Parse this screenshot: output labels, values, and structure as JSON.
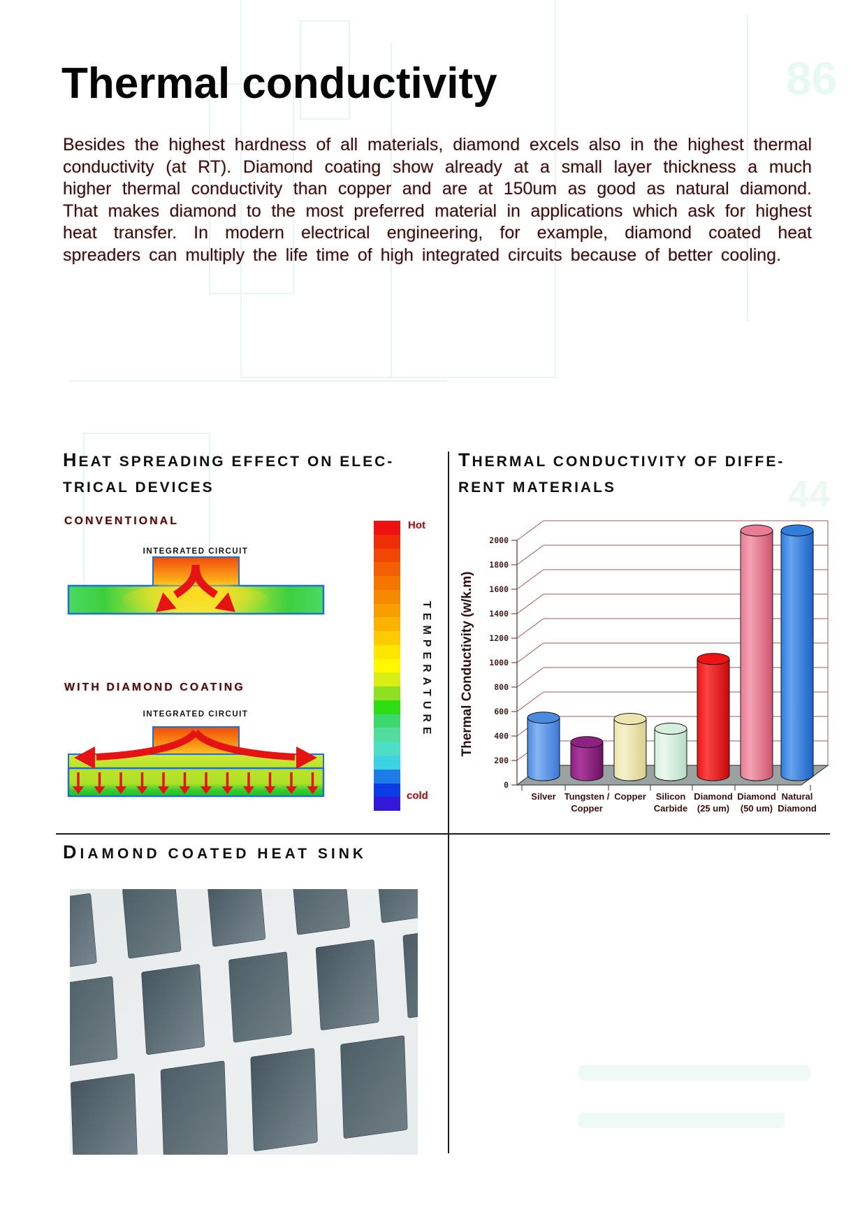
{
  "page": {
    "watermark_top_right": "86",
    "watermark_mid_right": "44"
  },
  "title": "Thermal conductivity",
  "intro": "Besides the highest hardness of all materials, diamond excels also in the highest thermal conductivity (at RT). Diamond coating show already at a small layer thickness a much higher thermal conductivity than copper and are at 150um as good as natural diamond. That makes diamond to the most preferred material in applications which ask for highest heat transfer. In modern electrical engineering, for example, diamond coated heat spreaders can multiply the life time of high integrated circuits because of better cooling.",
  "sections": {
    "left": {
      "heading_line1": "HEAT SPREADING EFFECT ON ELEC-",
      "heading_line2": "TRICAL DEVICES",
      "conventional_label": "CONVENTIONAL",
      "coated_label": "WITH DIAMOND COATING",
      "ic_label": "INTEGRATED CIRCUIT",
      "colorbar": {
        "hot_label": "Hot",
        "cold_label": "cold",
        "axis_label": "TEMPERATURE",
        "segments": [
          "#ee1111",
          "#ef2d07",
          "#f14605",
          "#f35f03",
          "#f57501",
          "#f78900",
          "#f99e00",
          "#fbb300",
          "#fdcc00",
          "#ffe600",
          "#fff800",
          "#d9ee12",
          "#8fdf22",
          "#2edd12",
          "#3ed96e",
          "#52dd9e",
          "#4edec6",
          "#3bd2e2",
          "#1e7ce8",
          "#0c3ce4",
          "#3418da"
        ]
      }
    },
    "right": {
      "heading_line1": "THERMAL CONDUCTIVITY OF DIFFE-",
      "heading_line2": "RENT MATERIALS"
    },
    "photo": {
      "heading": "DIAMOND COATED HEAT SINK"
    }
  },
  "chart_data": {
    "type": "bar",
    "style": "3d-cylinder",
    "title": "Thermal conductivity of different materials",
    "xlabel": "",
    "ylabel": "Thermal Conductivity (w/k.m)",
    "ylim": [
      0,
      2000
    ],
    "ytick_step": 200,
    "grid": true,
    "legend": false,
    "yticks": [
      "0",
      "200",
      "400",
      "600",
      "800",
      "1000",
      "1200",
      "1400",
      "1600",
      "1800",
      "2000"
    ],
    "categories": [
      {
        "line1": "Silver",
        "line2": ""
      },
      {
        "line1": "Tungsten /",
        "line2": "Copper"
      },
      {
        "line1": "Copper",
        "line2": ""
      },
      {
        "line1": "Silicon",
        "line2": "Carbide"
      },
      {
        "line1": "Diamond",
        "line2": "(25 um)"
      },
      {
        "line1": "Diamond",
        "line2": "(50 um)"
      },
      {
        "line1": "Natural",
        "line2": "Diamond"
      }
    ],
    "values": [
      470,
      270,
      460,
      380,
      950,
      2000,
      2000
    ],
    "bar_colors": [
      {
        "name": "silver",
        "main": "#3b78d8",
        "light": "#85b4f2",
        "top": "#4a8ae0"
      },
      {
        "name": "tungsten-copper",
        "main": "#6e1064",
        "light": "#a83a9a",
        "top": "#8d2280"
      },
      {
        "name": "copper",
        "main": "#d8cf8c",
        "light": "#f6f1ca",
        "top": "#ece5b0"
      },
      {
        "name": "silicon-carbide",
        "main": "#b7dcc5",
        "light": "#eaf7ee",
        "top": "#d8efdf"
      },
      {
        "name": "diamond-25um",
        "main": "#c80808",
        "light": "#fa4444",
        "top": "#ee1414"
      },
      {
        "name": "diamond-50um",
        "main": "#cc5570",
        "light": "#f4a2b2",
        "top": "#e87c92"
      },
      {
        "name": "natural-diamond",
        "main": "#1d62c8",
        "light": "#66a4ee",
        "top": "#2f7ddd"
      }
    ],
    "floor_color": "#9aa2a2",
    "grid_color": "#9a5c58"
  }
}
